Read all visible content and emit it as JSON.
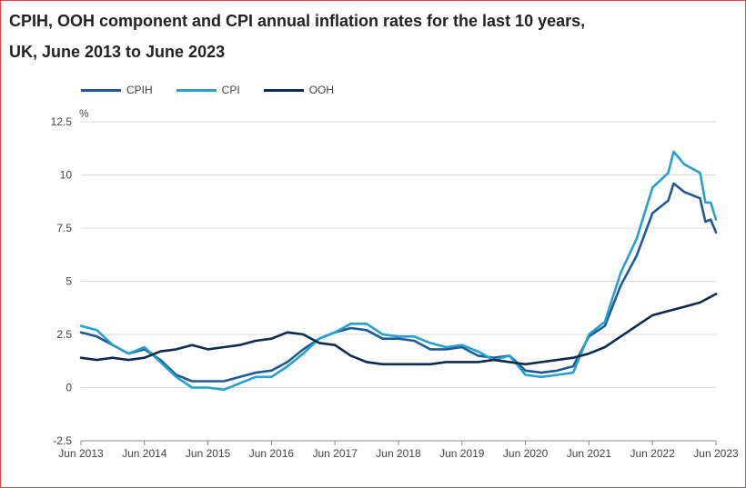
{
  "title_line1": "CPIH, OOH component and CPI annual inflation rates for the last 10 years,",
  "title_line2": "UK, June 2013 to June 2023",
  "colors": {
    "background": "#ffffff",
    "border": "#e04848",
    "gridline": "#d9d9d9",
    "axis_text": "#444444"
  },
  "chart_data": {
    "type": "line",
    "y_unit_label": "%",
    "ylim": [
      -2.5,
      12.5
    ],
    "yticks": [
      -2.5,
      0,
      2.5,
      5,
      7.5,
      10,
      12.5
    ],
    "ytick_labels": [
      "-2.5",
      "0",
      "2.5",
      "5",
      "7.5",
      "10",
      "12.5"
    ],
    "grid": "horizontal",
    "legend_position": "top-left",
    "x_start": "Jun 2013",
    "x_end": "Jun 2023",
    "xtick_labels": [
      "Jun 2013",
      "Jun 2014",
      "Jun 2015",
      "Jun 2016",
      "Jun 2017",
      "Jun 2018",
      "Jun 2019",
      "Jun 2020",
      "Jun 2021",
      "Jun 2022",
      "Jun 2023"
    ],
    "series": [
      {
        "name": "CPIH",
        "color": "#1f5a96",
        "points": [
          [
            "Jun 2013",
            2.6
          ],
          [
            "Sep 2013",
            2.4
          ],
          [
            "Dec 2013",
            2.0
          ],
          [
            "Mar 2014",
            1.6
          ],
          [
            "Jun 2014",
            1.8
          ],
          [
            "Sep 2014",
            1.3
          ],
          [
            "Dec 2014",
            0.6
          ],
          [
            "Mar 2015",
            0.3
          ],
          [
            "Jun 2015",
            0.3
          ],
          [
            "Sep 2015",
            0.3
          ],
          [
            "Dec 2015",
            0.5
          ],
          [
            "Mar 2016",
            0.7
          ],
          [
            "Jun 2016",
            0.8
          ],
          [
            "Sep 2016",
            1.2
          ],
          [
            "Dec 2016",
            1.8
          ],
          [
            "Mar 2017",
            2.3
          ],
          [
            "Jun 2017",
            2.6
          ],
          [
            "Sep 2017",
            2.8
          ],
          [
            "Dec 2017",
            2.7
          ],
          [
            "Mar 2018",
            2.3
          ],
          [
            "Jun 2018",
            2.3
          ],
          [
            "Sep 2018",
            2.2
          ],
          [
            "Dec 2018",
            1.8
          ],
          [
            "Mar 2019",
            1.8
          ],
          [
            "Jun 2019",
            1.9
          ],
          [
            "Sep 2019",
            1.5
          ],
          [
            "Dec 2019",
            1.4
          ],
          [
            "Mar 2020",
            1.5
          ],
          [
            "Jun 2020",
            0.8
          ],
          [
            "Sep 2020",
            0.7
          ],
          [
            "Dec 2020",
            0.8
          ],
          [
            "Mar 2021",
            1.0
          ],
          [
            "Jun 2021",
            2.4
          ],
          [
            "Sep 2021",
            2.9
          ],
          [
            "Dec 2021",
            4.8
          ],
          [
            "Mar 2022",
            6.2
          ],
          [
            "Jun 2022",
            8.2
          ],
          [
            "Sep 2022",
            8.8
          ],
          [
            "Oct 2022",
            9.6
          ],
          [
            "Dec 2022",
            9.2
          ],
          [
            "Mar 2023",
            8.9
          ],
          [
            "Apr 2023",
            7.8
          ],
          [
            "May 2023",
            7.9
          ],
          [
            "Jun 2023",
            7.3
          ]
        ]
      },
      {
        "name": "CPI",
        "color": "#27a0cc",
        "points": [
          [
            "Jun 2013",
            2.9
          ],
          [
            "Sep 2013",
            2.7
          ],
          [
            "Dec 2013",
            2.0
          ],
          [
            "Mar 2014",
            1.6
          ],
          [
            "Jun 2014",
            1.9
          ],
          [
            "Sep 2014",
            1.2
          ],
          [
            "Dec 2014",
            0.5
          ],
          [
            "Mar 2015",
            0.0
          ],
          [
            "Jun 2015",
            0.0
          ],
          [
            "Sep 2015",
            -0.1
          ],
          [
            "Dec 2015",
            0.2
          ],
          [
            "Mar 2016",
            0.5
          ],
          [
            "Jun 2016",
            0.5
          ],
          [
            "Sep 2016",
            1.0
          ],
          [
            "Dec 2016",
            1.6
          ],
          [
            "Mar 2017",
            2.3
          ],
          [
            "Jun 2017",
            2.6
          ],
          [
            "Sep 2017",
            3.0
          ],
          [
            "Dec 2017",
            3.0
          ],
          [
            "Mar 2018",
            2.5
          ],
          [
            "Jun 2018",
            2.4
          ],
          [
            "Sep 2018",
            2.4
          ],
          [
            "Dec 2018",
            2.1
          ],
          [
            "Mar 2019",
            1.9
          ],
          [
            "Jun 2019",
            2.0
          ],
          [
            "Sep 2019",
            1.7
          ],
          [
            "Dec 2019",
            1.3
          ],
          [
            "Mar 2020",
            1.5
          ],
          [
            "Jun 2020",
            0.6
          ],
          [
            "Sep 2020",
            0.5
          ],
          [
            "Dec 2020",
            0.6
          ],
          [
            "Mar 2021",
            0.7
          ],
          [
            "Jun 2021",
            2.5
          ],
          [
            "Sep 2021",
            3.1
          ],
          [
            "Dec 2021",
            5.4
          ],
          [
            "Mar 2022",
            7.0
          ],
          [
            "Jun 2022",
            9.4
          ],
          [
            "Sep 2022",
            10.1
          ],
          [
            "Oct 2022",
            11.1
          ],
          [
            "Dec 2022",
            10.5
          ],
          [
            "Mar 2023",
            10.1
          ],
          [
            "Apr 2023",
            8.7
          ],
          [
            "May 2023",
            8.7
          ],
          [
            "Jun 2023",
            7.9
          ]
        ]
      },
      {
        "name": "OOH",
        "color": "#0d2b4e",
        "points": [
          [
            "Jun 2013",
            1.4
          ],
          [
            "Sep 2013",
            1.3
          ],
          [
            "Dec 2013",
            1.4
          ],
          [
            "Mar 2014",
            1.3
          ],
          [
            "Jun 2014",
            1.4
          ],
          [
            "Sep 2014",
            1.7
          ],
          [
            "Dec 2014",
            1.8
          ],
          [
            "Mar 2015",
            2.0
          ],
          [
            "Jun 2015",
            1.8
          ],
          [
            "Sep 2015",
            1.9
          ],
          [
            "Dec 2015",
            2.0
          ],
          [
            "Mar 2016",
            2.2
          ],
          [
            "Jun 2016",
            2.3
          ],
          [
            "Sep 2016",
            2.6
          ],
          [
            "Dec 2016",
            2.5
          ],
          [
            "Mar 2017",
            2.1
          ],
          [
            "Jun 2017",
            2.0
          ],
          [
            "Sep 2017",
            1.5
          ],
          [
            "Dec 2017",
            1.2
          ],
          [
            "Mar 2018",
            1.1
          ],
          [
            "Jun 2018",
            1.1
          ],
          [
            "Sep 2018",
            1.1
          ],
          [
            "Dec 2018",
            1.1
          ],
          [
            "Mar 2019",
            1.2
          ],
          [
            "Jun 2019",
            1.2
          ],
          [
            "Sep 2019",
            1.2
          ],
          [
            "Dec 2019",
            1.3
          ],
          [
            "Mar 2020",
            1.2
          ],
          [
            "Jun 2020",
            1.1
          ],
          [
            "Sep 2020",
            1.2
          ],
          [
            "Dec 2020",
            1.3
          ],
          [
            "Mar 2021",
            1.4
          ],
          [
            "Jun 2021",
            1.6
          ],
          [
            "Sep 2021",
            1.9
          ],
          [
            "Dec 2021",
            2.4
          ],
          [
            "Mar 2022",
            2.9
          ],
          [
            "Jun 2022",
            3.4
          ],
          [
            "Sep 2022",
            3.6
          ],
          [
            "Dec 2022",
            3.8
          ],
          [
            "Mar 2023",
            4.0
          ],
          [
            "Jun 2023",
            4.4
          ]
        ]
      }
    ]
  }
}
